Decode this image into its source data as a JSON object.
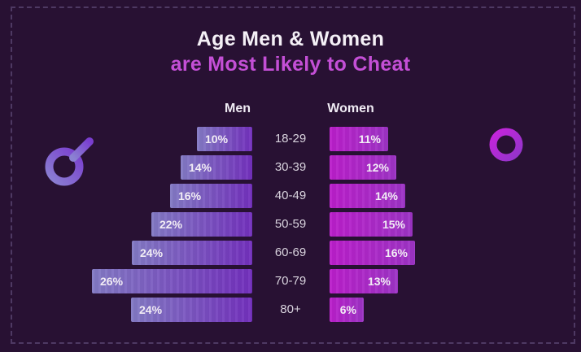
{
  "title": {
    "line1": "Age Men & Women",
    "line2": "are Most Likely to Cheat"
  },
  "columns": {
    "men": "Men",
    "women": "Women"
  },
  "icons": {
    "left": "male-symbol",
    "right": "female-symbol"
  },
  "colors": {
    "background": "#281133",
    "border_dash": "#4e3963",
    "title_text": "#f4f0f6",
    "subtitle_text": "#c44fd6",
    "men_bar_gradient": [
      "#837ac4",
      "#7330bd"
    ],
    "women_bar_gradient": [
      "#bb1ecb",
      "#9d34c5"
    ],
    "age_label_text": "#d9d3de",
    "bar_value_text": "#f2edf5"
  },
  "chart_data": {
    "type": "bar",
    "orientation": "horizontal",
    "layout": "paired-pyramid",
    "title": "Age Men & Women are Most Likely to Cheat",
    "categories": [
      "18-29",
      "30-39",
      "40-49",
      "50-59",
      "60-69",
      "70-79",
      "80+"
    ],
    "series": [
      {
        "name": "Men",
        "unit": "%",
        "values": [
          10,
          14,
          16,
          22,
          24,
          26,
          24
        ]
      },
      {
        "name": "Women",
        "unit": "%",
        "values": [
          11,
          12,
          14,
          15,
          16,
          13,
          6
        ]
      }
    ],
    "value_labels_shown": true,
    "axes_shown": false,
    "legend_position": "column-headers"
  },
  "rows": [
    {
      "age": "18-29",
      "men": "10%",
      "women": "11%",
      "men_w": 68,
      "women_w": 72
    },
    {
      "age": "30-39",
      "men": "14%",
      "women": "12%",
      "men_w": 88,
      "women_w": 82
    },
    {
      "age": "40-49",
      "men": "16%",
      "women": "14%",
      "men_w": 101,
      "women_w": 93
    },
    {
      "age": "50-59",
      "men": "22%",
      "women": "15%",
      "men_w": 124,
      "women_w": 102
    },
    {
      "age": "60-69",
      "men": "24%",
      "women": "16%",
      "men_w": 148,
      "women_w": 105
    },
    {
      "age": "70-79",
      "men": "26%",
      "women": "13%",
      "men_w": 197,
      "women_w": 84
    },
    {
      "age": "80+",
      "men": "24%",
      "women": "6%",
      "men_w": 149,
      "women_w": 42
    }
  ]
}
